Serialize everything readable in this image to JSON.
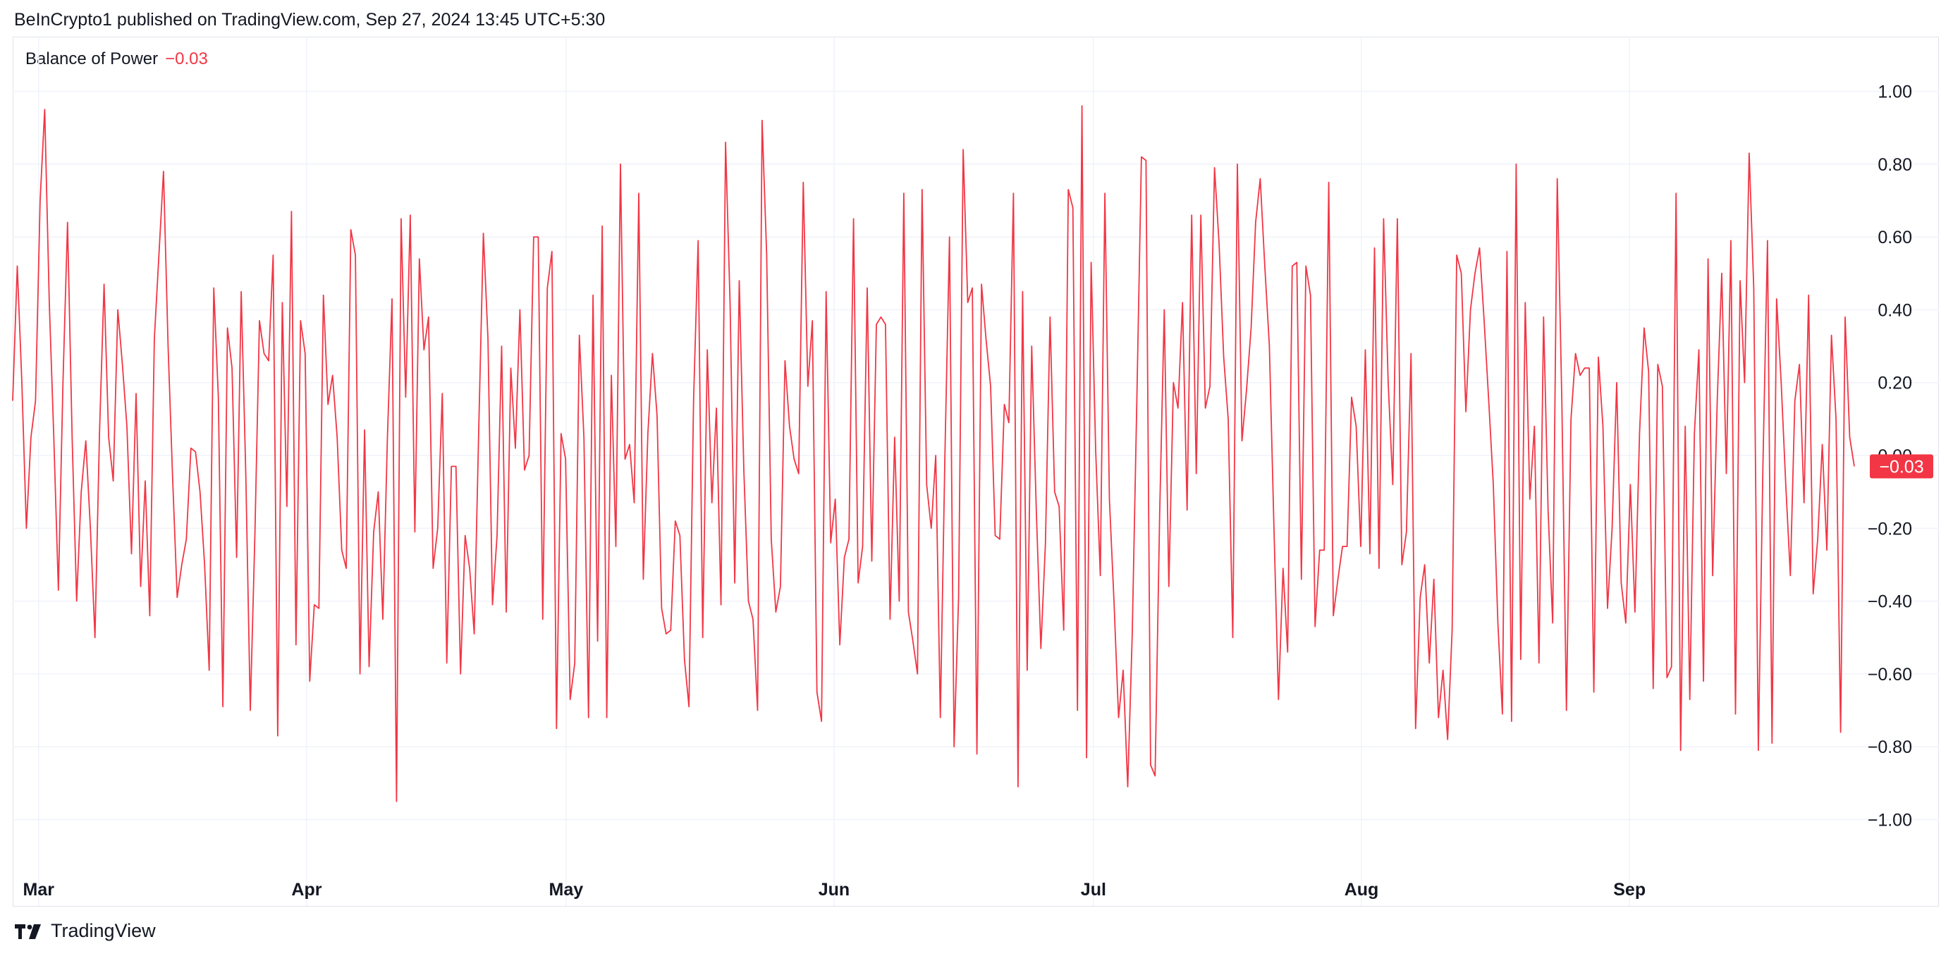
{
  "header": {
    "published": "BeInCrypto1 published on TradingView.com, Sep 27, 2024 13:45 UTC+5:30"
  },
  "legend": {
    "name": "Balance of Power",
    "value": "−0.03"
  },
  "brand": {
    "name": "TradingView"
  },
  "colors": {
    "line": "#f23645",
    "grid": "#f0f3fa",
    "text": "#131722"
  },
  "chart_data": {
    "type": "line",
    "indicator": "Balance of Power",
    "x_start": "2024-02-27",
    "x_end": "2024-09-27",
    "month_ticks": [
      {
        "label": "Mar",
        "date": "2024-03-01"
      },
      {
        "label": "Apr",
        "date": "2024-04-01"
      },
      {
        "label": "May",
        "date": "2024-05-01"
      },
      {
        "label": "Jun",
        "date": "2024-06-01"
      },
      {
        "label": "Jul",
        "date": "2024-07-01"
      },
      {
        "label": "Aug",
        "date": "2024-08-01"
      },
      {
        "label": "Sep",
        "date": "2024-09-01"
      }
    ],
    "y_ticks": [
      "1.00",
      "0.80",
      "0.60",
      "0.40",
      "0.20",
      "0.00",
      "−0.20",
      "−0.40",
      "−0.60",
      "−0.80",
      "−1.00"
    ],
    "ylim": [
      -1.15,
      1.15
    ],
    "last_value": -0.03,
    "last_label": "−0.03",
    "values": [
      0.15,
      0.52,
      0.2,
      -0.2,
      0.05,
      0.15,
      0.7,
      0.95,
      0.42,
      0.05,
      -0.37,
      0.2,
      0.64,
      0.05,
      -0.4,
      -0.1,
      0.04,
      -0.2,
      -0.5,
      0.06,
      0.47,
      0.05,
      -0.07,
      0.4,
      0.25,
      0.08,
      -0.27,
      0.17,
      -0.36,
      -0.07,
      -0.44,
      0.32,
      0.55,
      0.78,
      0.3,
      -0.06,
      -0.39,
      -0.3,
      -0.23,
      0.02,
      0.01,
      -0.1,
      -0.3,
      -0.59,
      0.46,
      0.16,
      -0.69,
      0.35,
      0.24,
      -0.28,
      0.45,
      -0.05,
      -0.7,
      -0.22,
      0.37,
      0.28,
      0.26,
      0.55,
      -0.77,
      0.42,
      -0.14,
      0.67,
      -0.52,
      0.37,
      0.28,
      -0.62,
      -0.41,
      -0.42,
      0.44,
      0.14,
      0.22,
      0.05,
      -0.26,
      -0.31,
      0.62,
      0.55,
      -0.6,
      0.07,
      -0.58,
      -0.21,
      -0.1,
      -0.45,
      0.05,
      0.43,
      -0.95,
      0.65,
      0.16,
      0.66,
      -0.21,
      0.54,
      0.29,
      0.38,
      -0.31,
      -0.2,
      0.17,
      -0.57,
      -0.03,
      -0.03,
      -0.6,
      -0.22,
      -0.31,
      -0.49,
      0.08,
      0.61,
      0.32,
      -0.41,
      -0.22,
      0.3,
      -0.43,
      0.24,
      0.02,
      0.4,
      -0.04,
      0.0,
      0.6,
      0.6,
      -0.45,
      0.46,
      0.56,
      -0.75,
      0.06,
      -0.01,
      -0.67,
      -0.57,
      0.33,
      0.05,
      -0.72,
      0.44,
      -0.51,
      0.63,
      -0.72,
      0.22,
      -0.25,
      0.8,
      -0.01,
      0.03,
      -0.13,
      0.72,
      -0.34,
      0.06,
      0.28,
      0.11,
      -0.42,
      -0.49,
      -0.48,
      -0.18,
      -0.22,
      -0.56,
      -0.69,
      0.15,
      0.59,
      -0.5,
      0.29,
      -0.13,
      0.13,
      -0.41,
      0.86,
      0.41,
      -0.35,
      0.48,
      -0.04,
      -0.4,
      -0.45,
      -0.7,
      0.92,
      0.55,
      -0.23,
      -0.43,
      -0.36,
      0.26,
      0.08,
      -0.01,
      -0.05,
      0.75,
      0.19,
      0.37,
      -0.65,
      -0.73,
      0.45,
      -0.24,
      -0.12,
      -0.52,
      -0.28,
      -0.23,
      0.65,
      -0.35,
      -0.25,
      0.46,
      -0.29,
      0.36,
      0.38,
      0.36,
      -0.45,
      0.05,
      -0.4,
      0.72,
      -0.43,
      -0.51,
      -0.6,
      0.73,
      -0.08,
      -0.2,
      0.0,
      -0.72,
      0.0,
      0.6,
      -0.8,
      -0.39,
      0.84,
      0.42,
      0.46,
      -0.82,
      0.47,
      0.32,
      0.19,
      -0.22,
      -0.23,
      0.14,
      0.09,
      0.72,
      -0.91,
      0.45,
      -0.59,
      0.3,
      -0.15,
      -0.53,
      -0.24,
      0.38,
      -0.1,
      -0.14,
      -0.48,
      0.73,
      0.68,
      -0.7,
      0.96,
      -0.83,
      0.53,
      0.01,
      -0.33,
      0.72,
      -0.12,
      -0.4,
      -0.72,
      -0.59,
      -0.91,
      -0.49,
      0.15,
      0.82,
      0.81,
      -0.85,
      -0.88,
      -0.16,
      0.4,
      -0.36,
      0.2,
      0.13,
      0.42,
      -0.15,
      0.66,
      -0.05,
      0.66,
      0.13,
      0.19,
      0.79,
      0.58,
      0.27,
      0.1,
      -0.5,
      0.8,
      0.04,
      0.18,
      0.35,
      0.64,
      0.76,
      0.52,
      0.3,
      -0.2,
      -0.67,
      -0.31,
      -0.54,
      0.52,
      0.53,
      -0.34,
      0.52,
      0.44,
      -0.47,
      -0.26,
      -0.26,
      0.75,
      -0.44,
      -0.34,
      -0.25,
      -0.25,
      0.16,
      0.08,
      -0.25,
      0.29,
      -0.27,
      0.57,
      -0.31,
      0.65,
      0.2,
      -0.08,
      0.65,
      -0.3,
      -0.21,
      0.28,
      -0.75,
      -0.39,
      -0.3,
      -0.57,
      -0.34,
      -0.72,
      -0.59,
      -0.78,
      -0.48,
      0.55,
      0.5,
      0.12,
      0.4,
      0.5,
      0.57,
      0.37,
      0.15,
      -0.08,
      -0.46,
      -0.71,
      0.56,
      -0.73,
      0.8,
      -0.56,
      0.42,
      -0.12,
      0.08,
      -0.57,
      0.38,
      -0.15,
      -0.46,
      0.76,
      0.15,
      -0.7,
      0.1,
      0.28,
      0.22,
      0.24,
      0.24,
      -0.65,
      0.27,
      0.08,
      -0.42,
      -0.2,
      0.2,
      -0.35,
      -0.46,
      -0.08,
      -0.43,
      0.06,
      0.35,
      0.23,
      -0.64,
      0.25,
      0.19,
      -0.61,
      -0.58,
      0.72,
      -0.81,
      0.08,
      -0.67,
      0.06,
      0.29,
      -0.62,
      0.54,
      -0.33,
      0.15,
      0.5,
      -0.05,
      0.59,
      -0.71,
      0.48,
      0.2,
      0.83,
      0.46,
      -0.81,
      -0.03,
      0.59,
      -0.79,
      0.43,
      0.2,
      -0.08,
      -0.33,
      0.15,
      0.25,
      -0.13,
      0.44,
      -0.38,
      -0.23,
      0.03,
      -0.26,
      0.33,
      0.1,
      -0.76,
      0.38,
      0.05,
      -0.03
    ]
  }
}
